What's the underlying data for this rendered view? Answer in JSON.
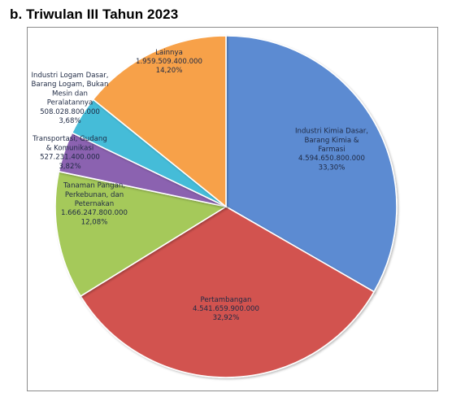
{
  "heading": "b. Triwulan III Tahun 2023",
  "colors": {
    "frame_border": "#8c8c8c",
    "label_text": "#1f2a44"
  },
  "chart_data": {
    "type": "pie",
    "title": "",
    "start_angle_deg": 0,
    "direction": "clockwise",
    "slices": [
      {
        "lines": [
          "Industri Kimia Dasar,",
          "Barang Kimia &",
          "Farmasi",
          "4.594.650.800.000",
          "33,30%"
        ],
        "value": 4594650800000,
        "percent": 33.3,
        "color": "#5B8BD2"
      },
      {
        "lines": [
          "Pertambangan",
          "4.541.659.900.000",
          "32,92%"
        ],
        "value": 4541659900000,
        "percent": 32.92,
        "color": "#D2534F"
      },
      {
        "lines": [
          "Tanaman  Pangan,",
          "Perkebunan, dan",
          "Peternakan",
          "1.666.247.800.000",
          "12,08%"
        ],
        "value": 1666247800000,
        "percent": 12.08,
        "color": "#A5C95A"
      },
      {
        "lines": [
          "Transportasi,  Gudang",
          "& Komunikasi",
          "527.231.400.000",
          "3,82%"
        ],
        "value": 527231400000,
        "percent": 3.82,
        "color": "#8B62B0"
      },
      {
        "lines": [
          "Industri Logam Dasar,",
          "Barang Logam, Bukan",
          "Mesin dan",
          "Peralatannya",
          "508.028.800.000",
          "3,68%"
        ],
        "value": 508028800000,
        "percent": 3.68,
        "color": "#45BCD8"
      },
      {
        "lines": [
          "Lainnya",
          "1.959.509.400.000",
          "14,20%"
        ],
        "value": 1959509400000,
        "percent": 14.2,
        "color": "#F7A148"
      }
    ]
  }
}
